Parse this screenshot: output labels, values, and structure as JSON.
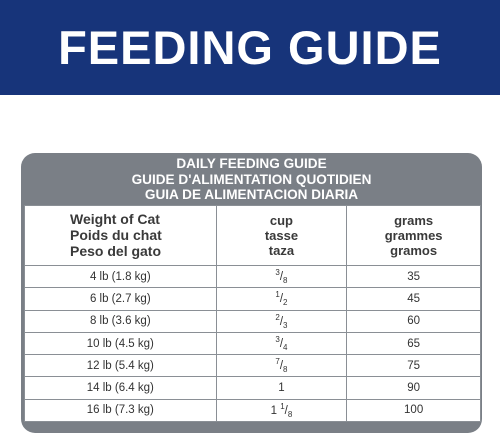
{
  "banner": {
    "title": "FEEDING GUIDE"
  },
  "card": {
    "heading_en": "DAILY FEEDING GUIDE",
    "heading_fr": "GUIDE D'ALIMENTATION QUOTIDIEN",
    "heading_es": "GUIA DE ALIMENTACION DIARIA"
  },
  "table": {
    "headers": {
      "weight": [
        "Weight of Cat",
        "Poids du chat",
        "Peso del gato"
      ],
      "cup": [
        "cup",
        "tasse",
        "taza"
      ],
      "grams": [
        "grams",
        "grammes",
        "gramos"
      ]
    },
    "rows": [
      {
        "weight": "4 lb (1.8 kg)",
        "cup": "3/8",
        "grams": "35"
      },
      {
        "weight": "6 lb (2.7 kg)",
        "cup": "1/2",
        "grams": "45"
      },
      {
        "weight": "8 lb (3.6 kg)",
        "cup": "2/3",
        "grams": "60"
      },
      {
        "weight": "10 lb (4.5 kg)",
        "cup": "3/4",
        "grams": "65"
      },
      {
        "weight": "12 lb (5.4 kg)",
        "cup": "7/8",
        "grams": "75"
      },
      {
        "weight": "14 lb (6.4 kg)",
        "cup": "1",
        "grams": "90"
      },
      {
        "weight": "16 lb (7.3 kg)",
        "cup": "1 1/8",
        "grams": "100"
      }
    ]
  },
  "colors": {
    "banner": "#17347a",
    "card": "#7a7f86",
    "border": "#8a8f95"
  }
}
